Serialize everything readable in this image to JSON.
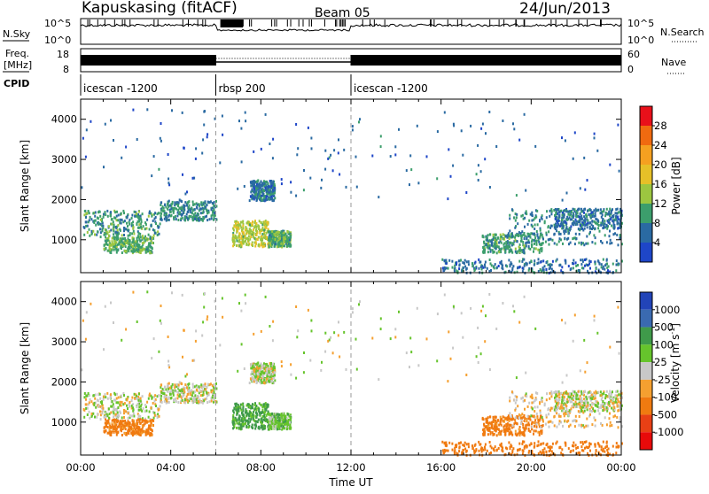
{
  "header": {
    "station": "Kapuskasing (fitACF)",
    "beam": "Beam 05",
    "date": "24/Jun/2013"
  },
  "top_panel": {
    "nsky_label": "N.Sky",
    "nsky_ticks": [
      "10^5",
      "10^0"
    ],
    "nsearch_label": "N.Search",
    "nsearch_ticks": [
      "10^5",
      "10^0"
    ],
    "freq_label_line1": "Freq.",
    "freq_label_line2": "[MHz]",
    "freq_ticks": [
      "18",
      "8"
    ],
    "nave_label": "Nave",
    "nave_ticks": [
      "60",
      "0"
    ],
    "cpid_label": "CPID",
    "cpid_segments": [
      {
        "label": "icescan -1200",
        "start_hour": 0,
        "end_hour": 6
      },
      {
        "label": "rbsp 200",
        "start_hour": 6,
        "end_hour": 12
      },
      {
        "label": "icescan -1200",
        "start_hour": 12,
        "end_hour": 24
      }
    ]
  },
  "power_panel": {
    "ylabel": "Slant Range [km]",
    "colorbar_label": "Power [dB]",
    "colorbar_ticks": [
      "28",
      "24",
      "20",
      "16",
      "12",
      "8",
      "4"
    ],
    "colorbar_colors": [
      "#e8101a",
      "#f06a10",
      "#f5a020",
      "#e6c028",
      "#9cc640",
      "#3c9e6c",
      "#2a6aa2",
      "#1e46c8"
    ]
  },
  "velocity_panel": {
    "ylabel": "Slant Range [km]",
    "colorbar_label_main": "Velocity  [m s",
    "colorbar_label_exp": "-1",
    "colorbar_label_end": "]",
    "colorbar_ticks": [
      "1000",
      "500",
      "100",
      "25",
      "-25",
      "-100",
      "-500",
      "-1000"
    ],
    "colorbar_colors": [
      "#2244b8",
      "#3a6ab0",
      "#3f9a4a",
      "#66c42c",
      "#c8c8c8",
      "#f5a030",
      "#f07a10",
      "#e84015",
      "#e80a0a"
    ]
  },
  "x_axis": {
    "label": "Time UT",
    "tick_labels": [
      "00:00",
      "04:00",
      "08:00",
      "12:00",
      "16:00",
      "20:00",
      "00:00"
    ]
  },
  "chart_data": {
    "type": "heatmap",
    "x_range_hours": [
      0,
      24
    ],
    "y_range_km": [
      180,
      4500
    ],
    "y_ticks_km": [
      1000,
      2000,
      3000,
      4000
    ],
    "mode_change_hours": [
      6,
      12
    ],
    "power_db_range": [
      0,
      30
    ],
    "velocity_range": [
      -1000,
      1000
    ],
    "echo_regions": [
      {
        "t_start": 0.1,
        "t_end": 3.5,
        "r_min": 1100,
        "r_max": 1750,
        "power": 9,
        "velocity": 10
      },
      {
        "t_start": 3.5,
        "t_end": 6.0,
        "r_min": 1500,
        "r_max": 2000,
        "power": 8,
        "velocity": 5
      },
      {
        "t_start": 1.0,
        "t_end": 3.2,
        "r_min": 700,
        "r_max": 1100,
        "power": 10,
        "velocity": -150
      },
      {
        "t_start": 6.7,
        "t_end": 8.3,
        "r_min": 850,
        "r_max": 1500,
        "power": 14,
        "velocity": 120
      },
      {
        "t_start": 8.3,
        "t_end": 9.3,
        "r_min": 850,
        "r_max": 1250,
        "power": 10,
        "velocity": 60
      },
      {
        "t_start": 7.5,
        "t_end": 8.6,
        "r_min": 2000,
        "r_max": 2500,
        "power": 6,
        "velocity": 15
      },
      {
        "t_start": 17.8,
        "t_end": 20.5,
        "r_min": 700,
        "r_max": 1200,
        "power": 9,
        "velocity": -150
      },
      {
        "t_start": 19.0,
        "t_end": 24.0,
        "r_min": 900,
        "r_max": 1800,
        "power": 7,
        "velocity": -30
      },
      {
        "t_start": 21.0,
        "t_end": 24.0,
        "r_min": 1300,
        "r_max": 1800,
        "power": 6,
        "velocity": 10
      },
      {
        "t_start": 16.0,
        "t_end": 24.0,
        "r_min": 200,
        "r_max": 550,
        "power": 6,
        "velocity": -400
      },
      {
        "t_start": 0.0,
        "t_end": 24.0,
        "r_min": 2000,
        "r_max": 4300,
        "power": 5,
        "velocity": 0
      }
    ]
  }
}
